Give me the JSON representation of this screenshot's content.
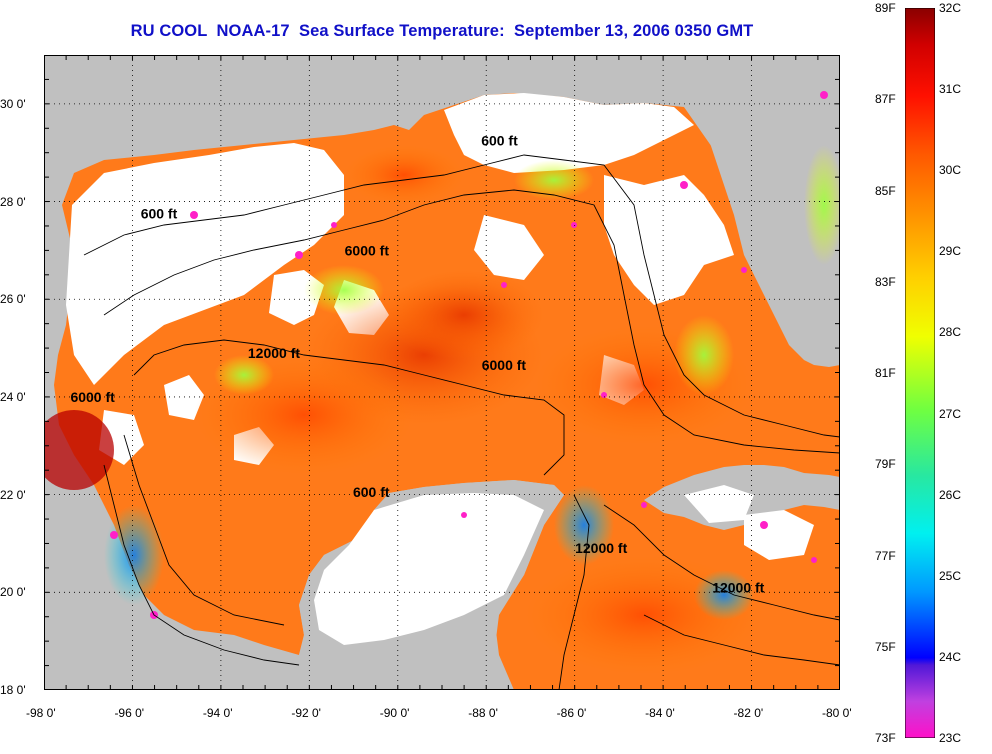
{
  "title": "RU COOL  NOAA-17  Sea Surface Temperature:  September 13, 2006 0350 GMT",
  "map": {
    "extent": {
      "lon_min": -98,
      "lon_max": -80,
      "lat_min": 18,
      "lat_max": 31
    },
    "x_ticks": [
      {
        "value": -98,
        "label": "-98 0'"
      },
      {
        "value": -96,
        "label": "-96 0'"
      },
      {
        "value": -94,
        "label": "-94 0'"
      },
      {
        "value": -92,
        "label": "-92 0'"
      },
      {
        "value": -90,
        "label": "-90 0'"
      },
      {
        "value": -88,
        "label": "-88 0'"
      },
      {
        "value": -86,
        "label": "-86 0'"
      },
      {
        "value": -84,
        "label": "-84 0'"
      },
      {
        "value": -82,
        "label": "-82 0'"
      },
      {
        "value": -80,
        "label": "-80 0'"
      }
    ],
    "y_ticks": [
      {
        "value": 30,
        "label": "30 0'"
      },
      {
        "value": 28,
        "label": "28 0'"
      },
      {
        "value": 26,
        "label": "26 0'"
      },
      {
        "value": 24,
        "label": "24 0'"
      },
      {
        "value": 22,
        "label": "22 0'"
      },
      {
        "value": 20,
        "label": "20 0'"
      },
      {
        "value": 18,
        "label": "18 0'"
      }
    ],
    "contour_labels": [
      {
        "text": "600 ft",
        "lon": -87.7,
        "lat": 29.15
      },
      {
        "text": "600 ft",
        "lon": -95.4,
        "lat": 27.65
      },
      {
        "text": "6000 ft",
        "lon": -90.7,
        "lat": 26.9
      },
      {
        "text": "12000 ft",
        "lon": -92.8,
        "lat": 24.8
      },
      {
        "text": "6000 ft",
        "lon": -96.9,
        "lat": 23.9
      },
      {
        "text": "6000 ft",
        "lon": -87.6,
        "lat": 24.55
      },
      {
        "text": "600 ft",
        "lon": -90.6,
        "lat": 21.95
      },
      {
        "text": "12000 ft",
        "lon": -85.4,
        "lat": 20.8
      },
      {
        "text": "12000 ft",
        "lon": -82.3,
        "lat": 20.0
      }
    ],
    "colors": {
      "land": "#c0c0c0",
      "no_data": "#ffffff",
      "contour": "#000000"
    }
  },
  "colorbar": {
    "range_c": [
      23,
      32
    ],
    "range_f": [
      73,
      89
    ],
    "celsius_labels": [
      "32C",
      "31C",
      "30C",
      "29C",
      "28C",
      "27C",
      "26C",
      "25C",
      "24C",
      "23C"
    ],
    "fahrenheit_labels": [
      "89F",
      "87F",
      "85F",
      "83F",
      "81F",
      "79F",
      "77F",
      "75F",
      "73F"
    ],
    "stops": [
      "#ff10c8",
      "#c040e0",
      "#5018d8",
      "#0000ff",
      "#0098ff",
      "#00f0f0",
      "#28e8a0",
      "#70ff40",
      "#f0ff00",
      "#ffd000",
      "#ff9000",
      "#ff5800",
      "#ff1000",
      "#d00000",
      "#8a0000"
    ]
  }
}
